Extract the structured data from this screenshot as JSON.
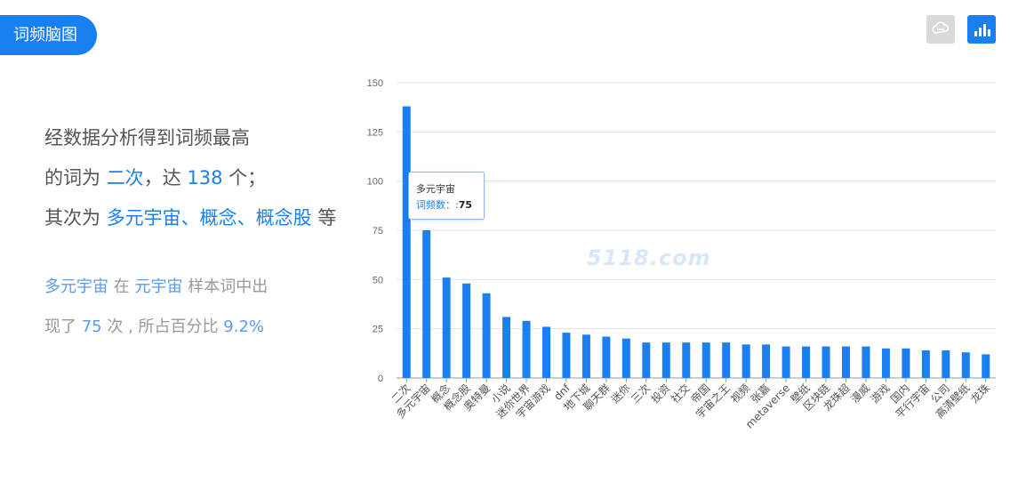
{
  "header": {
    "title": "词频脑图"
  },
  "toolbar": {
    "cloud_icon": "cloud-icon",
    "bar_icon": "bar-chart-icon",
    "accent": "#1a7ff0"
  },
  "summary": {
    "line1": "经数据分析得到词频最高",
    "line2_prefix": "的词为",
    "top_word": "二次",
    "line2_mid": "，达",
    "top_count": "138",
    "line2_suffix": "个；",
    "line3_prefix": "其次为",
    "next_words": "多元宇宙、概念、概念股",
    "line3_suffix": "等"
  },
  "detail": {
    "word": "多元宇宙",
    "in": "在",
    "sample": "元宇宙",
    "text1": "样本词中出",
    "text2_prefix": "现了",
    "count": "75",
    "text2_mid": "次 , 所占百分比",
    "percent": "9.2%"
  },
  "tooltip": {
    "title": "多元宇宙",
    "label": "词频数：:",
    "value": "75"
  },
  "watermark": "5118.com",
  "chart_data": {
    "type": "bar",
    "categories": [
      "二次",
      "多元宇宙",
      "概念",
      "概念股",
      "奥特曼",
      "小说",
      "迷你世界",
      "宇宙游戏",
      "dnf",
      "地下城",
      "聊天群",
      "迷你",
      "三次",
      "投资",
      "社交",
      "帝国",
      "宇宙之王",
      "视频",
      "张嘉",
      "metaverse",
      "壁纸",
      "区块链",
      "龙珠超",
      "漫威",
      "游戏",
      "国内",
      "平行宇宙",
      "公司",
      "高清壁纸",
      "龙珠"
    ],
    "values": [
      138,
      75,
      51,
      48,
      43,
      31,
      29,
      26,
      23,
      22,
      21,
      20,
      18,
      18,
      18,
      18,
      18,
      17,
      17,
      16,
      16,
      16,
      16,
      16,
      15,
      15,
      14,
      14,
      13,
      12
    ],
    "yticks": [
      "0",
      "25",
      "50",
      "75",
      "100",
      "125",
      "150"
    ],
    "ylim": [
      0,
      150
    ],
    "color": "#1a7ff0"
  }
}
